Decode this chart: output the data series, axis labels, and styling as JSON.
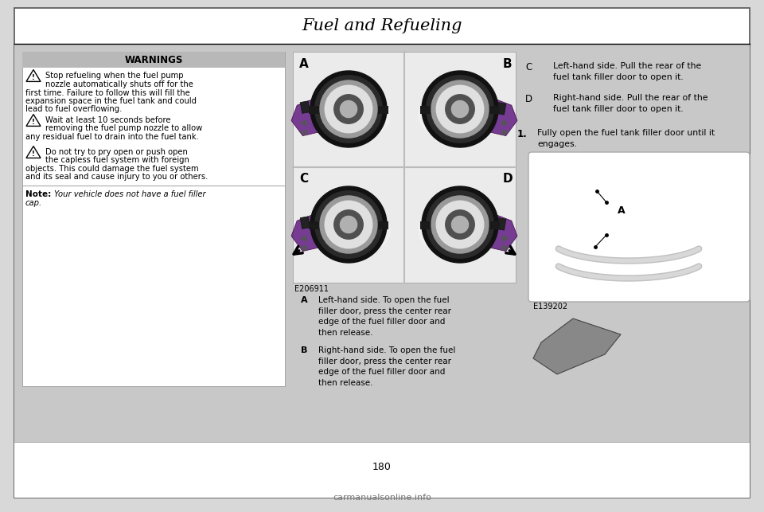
{
  "title": "Fuel and Refueling",
  "page_bg": "#d8d8d8",
  "inner_bg": "#ffffff",
  "warnings_header_bg": "#c0c0c0",
  "warnings_header_text": "WARNINGS",
  "warning1": "Stop refueling when the fuel pump\nnozzle automatically shuts off for the\nfirst time. Failure to follow this will fill the\nexpansion space in the fuel tank and could\nlead to fuel overflowing.",
  "warning2": "Wait at least 10 seconds before\nremoving the fuel pump nozzle to allow\nany residual fuel to drain into the fuel tank.",
  "warning3": "Do not try to pry open or push open\nthe capless fuel system with foreign\nobjects. This could damage the fuel system\nand its seal and cause injury to you or others.",
  "note_bold": "Note:",
  "note_italic": " Your vehicle does not have a fuel filler\ncap.",
  "fig_label": "E206911",
  "fig_label2": "E139202",
  "desc_A_text": "Left-hand side. To open the fuel\nfiller door, press the center rear\nedge of the fuel filler door and\nthen release.",
  "desc_B_text": "Right-hand side. To open the fuel\nfiller door, press the center rear\nedge of the fuel filler door and\nthen release.",
  "desc_C_text": "Left-hand side. Pull the rear of the\nfuel tank filler door to open it.",
  "desc_D_text": "Right-hand side. Pull the rear of the\nfuel tank filler door to open it.",
  "step1_num": "1.",
  "step1_text": "Fully open the fuel tank filler door until it\nengages.",
  "page_number": "180",
  "bottom_text": "carmanualsonline.info",
  "purple_color": "#6b2d8b",
  "dark_gray": "#333333",
  "med_gray": "#888888",
  "light_gray": "#cccccc",
  "arrow_gray": "#777777"
}
